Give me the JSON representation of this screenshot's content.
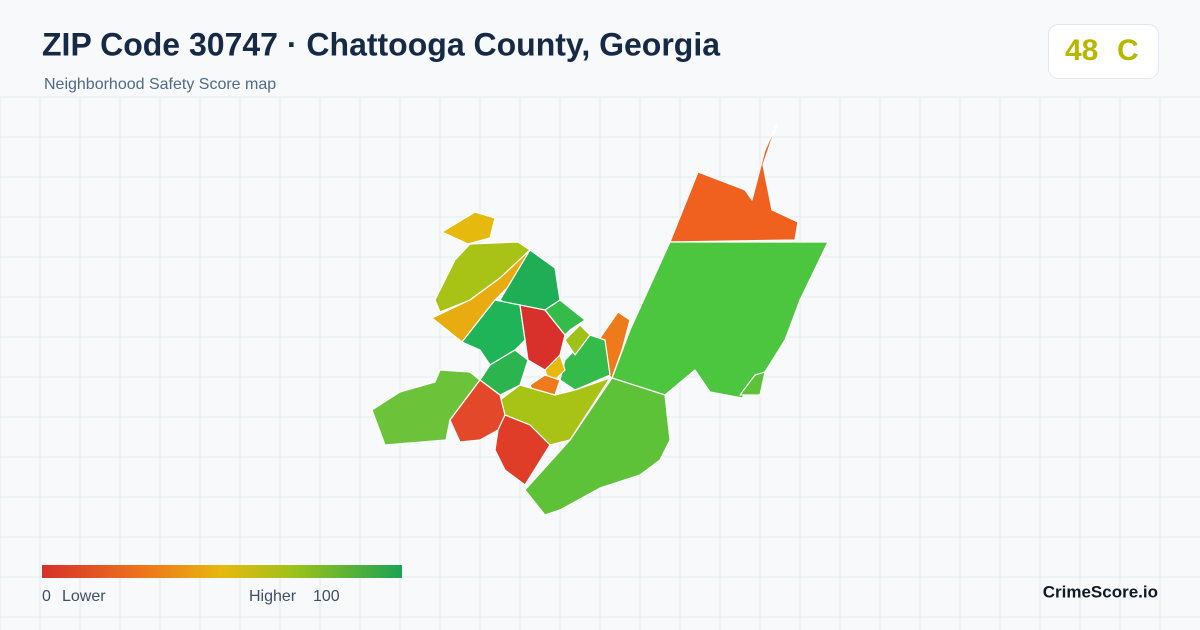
{
  "header": {
    "title": "ZIP Code 30747 · Chattooga County, Georgia",
    "subtitle": "Neighborhood Safety Score map"
  },
  "score": {
    "value": "48",
    "grade": "C"
  },
  "legend": {
    "min": "0",
    "min_label": "Lower",
    "max_label": "Higher",
    "max": "100"
  },
  "brand": "CrimeScore.io"
}
